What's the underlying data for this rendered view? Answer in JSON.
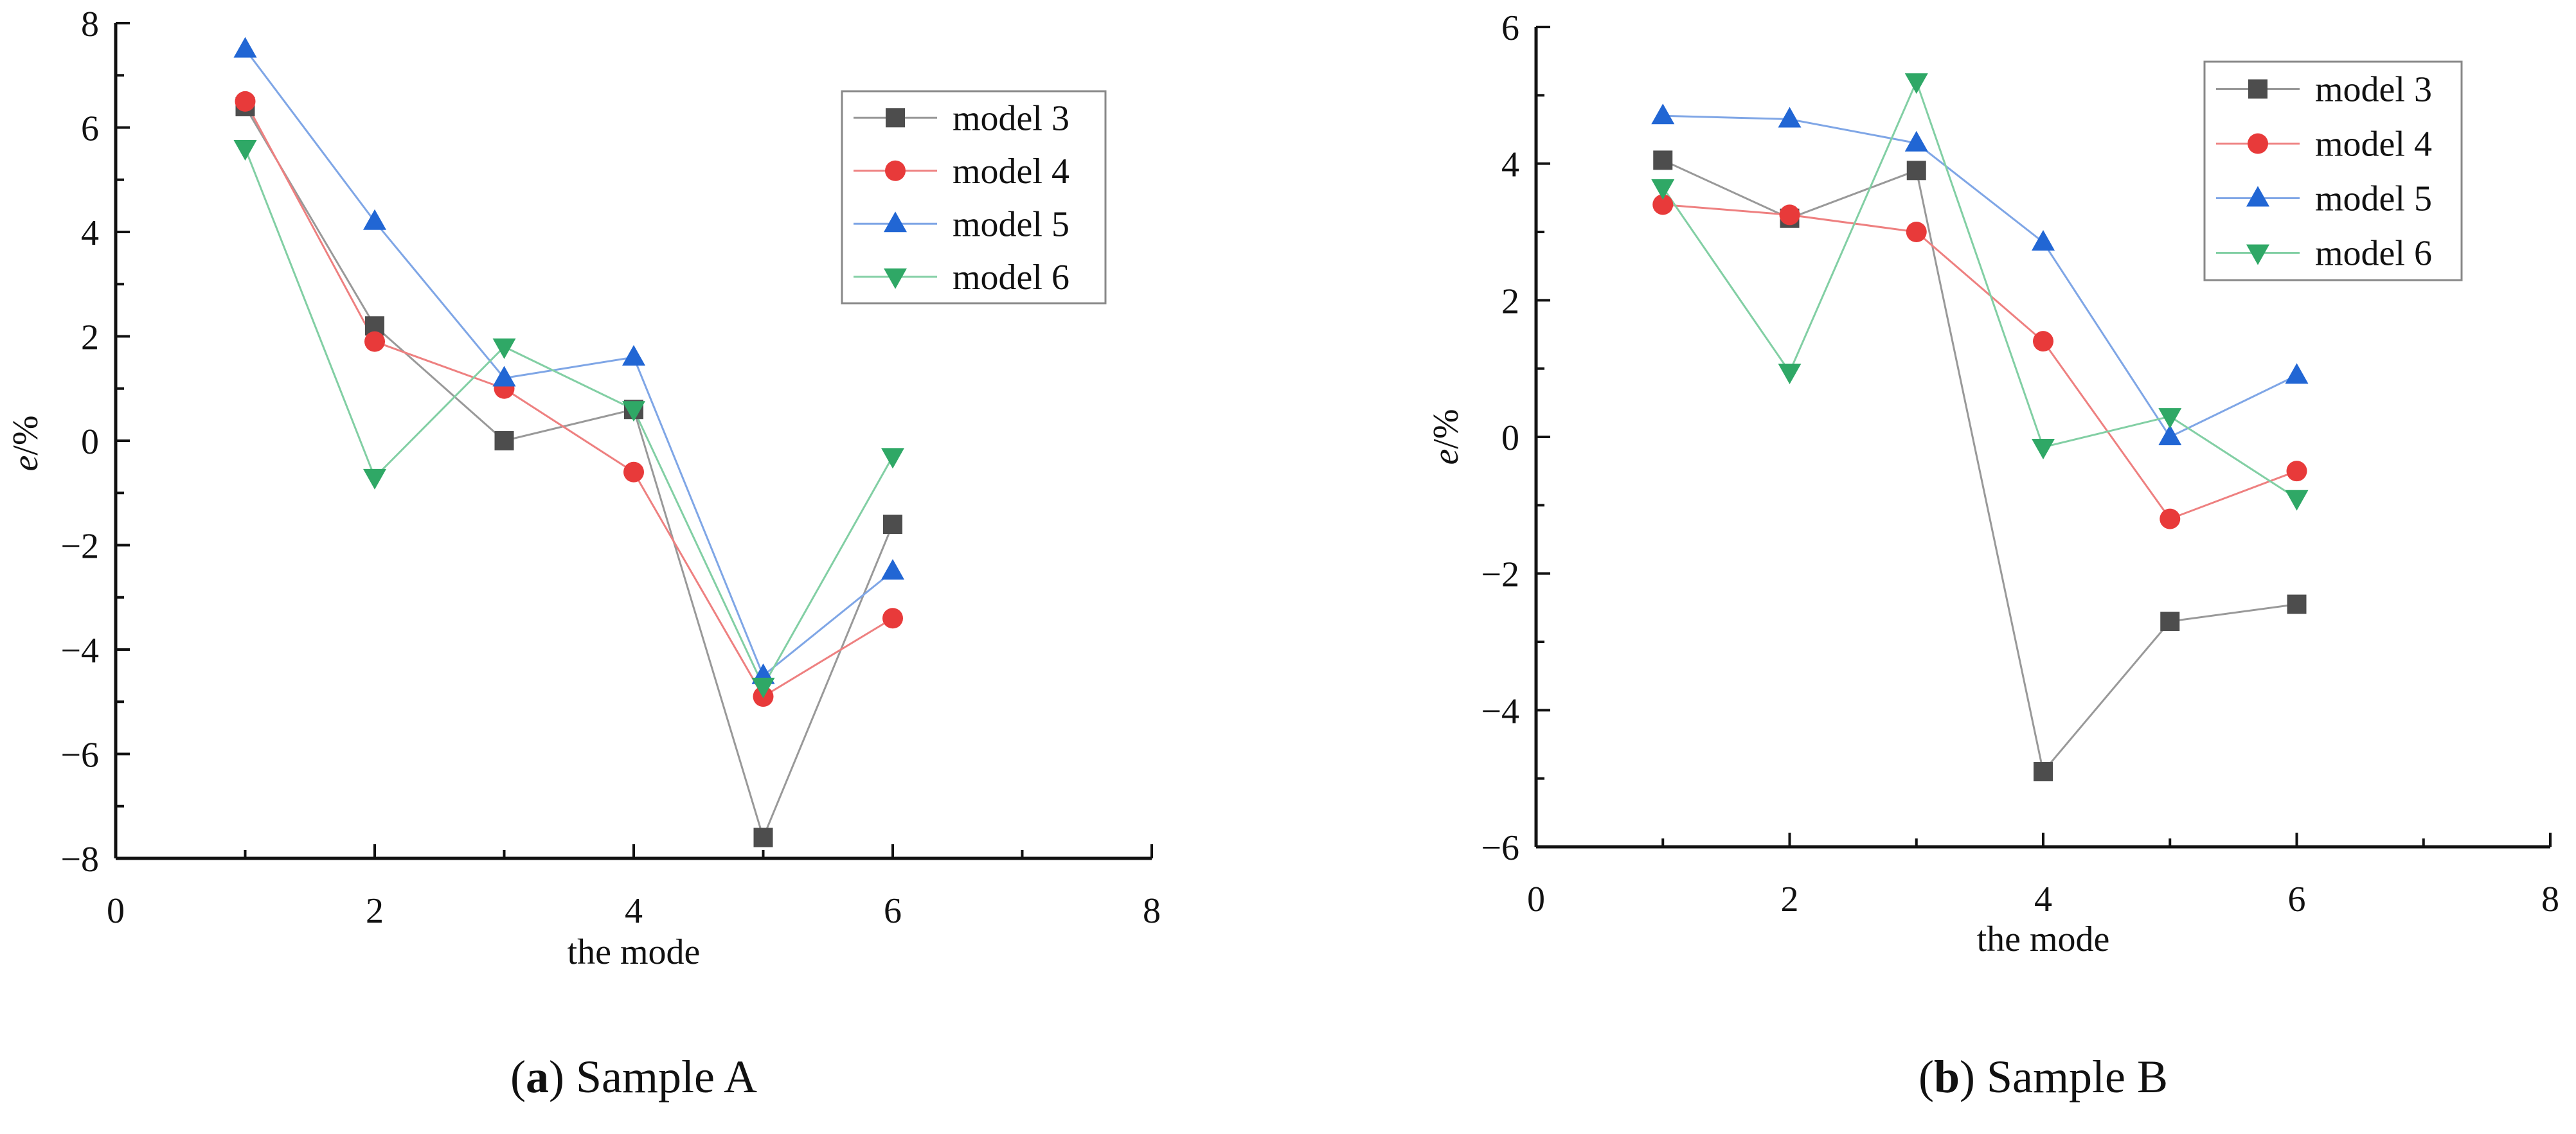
{
  "chart_data": [
    {
      "type": "line",
      "title": "",
      "xlabel": "the mode",
      "ylabel": "e/%",
      "ylabel_italic": "e",
      "ylabel_rest": "/%",
      "xlim": [
        0,
        8
      ],
      "ylim": [
        -8,
        8
      ],
      "x_ticks": [
        0,
        2,
        4,
        6,
        8
      ],
      "y_ticks": [
        -8,
        -6,
        -4,
        -2,
        0,
        2,
        4,
        6,
        8
      ],
      "x_tick_labels": [
        "0",
        "2",
        "4",
        "6",
        "8"
      ],
      "y_tick_labels": [
        "−8",
        "−6",
        "−4",
        "−2",
        "0",
        "2",
        "4",
        "6",
        "8"
      ],
      "legend_position": "top-right",
      "caption": {
        "letter": "a",
        "text": " Sample A",
        "open": "(",
        "close": ")"
      },
      "x": [
        1,
        2,
        3,
        4,
        5,
        6
      ],
      "series": [
        {
          "name": "model 3",
          "values": [
            6.4,
            2.2,
            0.0,
            0.6,
            -7.6,
            -1.6
          ],
          "color": "#4d4d4d",
          "line_color": "#999999",
          "marker": "square"
        },
        {
          "name": "model 4",
          "values": [
            6.5,
            1.9,
            1.0,
            -0.6,
            -4.9,
            -3.4
          ],
          "color": "#e83a3a",
          "line_color": "#ee8080",
          "marker": "circle"
        },
        {
          "name": "model 5",
          "values": [
            7.5,
            4.2,
            1.2,
            1.6,
            -4.5,
            -2.5
          ],
          "color": "#2166d4",
          "line_color": "#7fa6e6",
          "marker": "triangle-up"
        },
        {
          "name": "model 6",
          "values": [
            5.6,
            -0.7,
            1.8,
            0.6,
            -4.7,
            -0.3
          ],
          "color": "#2fa866",
          "line_color": "#82cfa4",
          "marker": "triangle-down"
        }
      ]
    },
    {
      "type": "line",
      "title": "",
      "xlabel": "the mode",
      "ylabel": "e/%",
      "ylabel_italic": "e",
      "ylabel_rest": "/%",
      "xlim": [
        0,
        8
      ],
      "ylim": [
        -6,
        6
      ],
      "x_ticks": [
        0,
        2,
        4,
        6,
        8
      ],
      "y_ticks": [
        -6,
        -4,
        -2,
        0,
        2,
        4,
        6
      ],
      "x_tick_labels": [
        "0",
        "2",
        "4",
        "6",
        "8"
      ],
      "y_tick_labels": [
        "−6",
        "−4",
        "−2",
        "0",
        "2",
        "4",
        "6"
      ],
      "legend_position": "top-right",
      "caption": {
        "letter": "b",
        "text": " Sample B",
        "open": "(",
        "close": ")"
      },
      "x": [
        1,
        2,
        3,
        4,
        5,
        6
      ],
      "series": [
        {
          "name": "model 3",
          "values": [
            4.05,
            3.2,
            3.9,
            -4.9,
            -2.7,
            -2.45
          ],
          "color": "#4d4d4d",
          "line_color": "#999999",
          "marker": "square"
        },
        {
          "name": "model 4",
          "values": [
            3.4,
            3.25,
            3.0,
            1.4,
            -1.2,
            -0.5
          ],
          "color": "#e83a3a",
          "line_color": "#ee8080",
          "marker": "circle"
        },
        {
          "name": "model 5",
          "values": [
            4.7,
            4.65,
            4.3,
            2.85,
            0.0,
            0.9
          ],
          "color": "#2166d4",
          "line_color": "#7fa6e6",
          "marker": "triangle-up"
        },
        {
          "name": "model 6",
          "values": [
            3.65,
            0.95,
            5.2,
            -0.15,
            0.3,
            -0.9
          ],
          "color": "#2fa866",
          "line_color": "#82cfa4",
          "marker": "triangle-down"
        }
      ]
    }
  ]
}
